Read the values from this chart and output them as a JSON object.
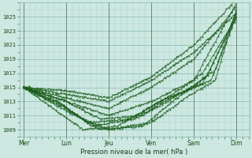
{
  "background_color": "#cce8e0",
  "plot_bg_color": "#cce8e0",
  "grid_minor_color": "#aacfc8",
  "grid_major_color": "#88b8b0",
  "line_color": "#1a5c1a",
  "title": "Pression niveau de la mer( hPa )",
  "yticks": [
    1009,
    1011,
    1013,
    1015,
    1017,
    1019,
    1021,
    1023,
    1025
  ],
  "ylim": [
    1008.0,
    1027.0
  ],
  "xlabels": [
    "Mer",
    "Lun",
    "Jeu",
    "Ven",
    "Sam",
    "Dim"
  ],
  "xpositions": [
    0,
    1,
    2,
    3,
    4,
    5
  ],
  "xlim": [
    -0.1,
    5.3
  ]
}
